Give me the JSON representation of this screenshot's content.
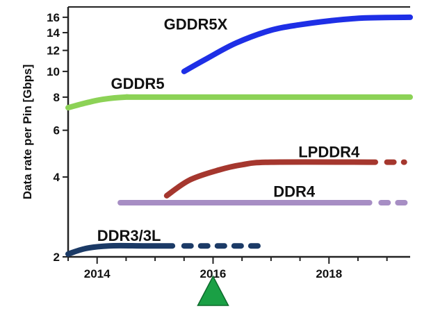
{
  "chart_data": {
    "type": "line",
    "title": "",
    "xlabel": "",
    "ylabel": "Data rate per Pin [Gbps]",
    "y_scale": "log",
    "xlim": [
      2013.5,
      2019.4
    ],
    "ylim": [
      2,
      17.5
    ],
    "x_ticks": [
      {
        "value": 2014,
        "label": "2014"
      },
      {
        "value": 2016,
        "label": "2016"
      },
      {
        "value": 2018,
        "label": "2018"
      }
    ],
    "y_ticks": [
      {
        "value": 2,
        "label": "2"
      },
      {
        "value": 4,
        "label": "4"
      },
      {
        "value": 6,
        "label": "6"
      },
      {
        "value": 8,
        "label": "8"
      },
      {
        "value": 10,
        "label": "10"
      },
      {
        "value": 12,
        "label": "12"
      },
      {
        "value": 14,
        "label": "14"
      },
      {
        "value": 16,
        "label": "16"
      }
    ],
    "grid": false,
    "series": [
      {
        "name": "GDDR5X",
        "color": "#1e2fe6",
        "solid": [
          [
            2015.5,
            10.0
          ],
          [
            2015.9,
            11.2
          ],
          [
            2016.4,
            12.8
          ],
          [
            2017.0,
            14.3
          ],
          [
            2017.5,
            15.0
          ],
          [
            2018.0,
            15.5
          ],
          [
            2018.6,
            15.9
          ],
          [
            2019.4,
            16.0
          ]
        ],
        "dashed": []
      },
      {
        "name": "GDDR5",
        "color": "#8cd256",
        "solid": [
          [
            2013.5,
            7.3
          ],
          [
            2013.8,
            7.6
          ],
          [
            2014.1,
            7.85
          ],
          [
            2014.5,
            8.0
          ],
          [
            2015.0,
            8.0
          ],
          [
            2019.4,
            8.0
          ]
        ],
        "dashed": []
      },
      {
        "name": "LPDDR4",
        "color": "#a5372e",
        "solid": [
          [
            2015.2,
            3.4
          ],
          [
            2015.6,
            3.9
          ],
          [
            2016.1,
            4.25
          ],
          [
            2016.5,
            4.45
          ],
          [
            2017.0,
            4.55
          ],
          [
            2018.8,
            4.55
          ]
        ],
        "dashed": [
          [
            2019.0,
            4.55
          ],
          [
            2019.3,
            4.55
          ]
        ]
      },
      {
        "name": "DDR4",
        "color": "#a78ec4",
        "solid": [
          [
            2014.4,
            3.2
          ],
          [
            2018.7,
            3.2
          ]
        ],
        "dashed": [
          [
            2018.9,
            3.2
          ],
          [
            2019.4,
            3.2
          ]
        ]
      },
      {
        "name": "DDR3/3L",
        "color": "#1b3a66",
        "solid": [
          [
            2013.5,
            2.05
          ],
          [
            2013.8,
            2.15
          ],
          [
            2014.2,
            2.2
          ],
          [
            2014.8,
            2.2
          ],
          [
            2015.3,
            2.2
          ]
        ],
        "dashed": [
          [
            2015.5,
            2.2
          ],
          [
            2016.8,
            2.2
          ]
        ]
      }
    ],
    "annotations": [
      {
        "type": "triangle-marker",
        "x": 2016.0,
        "color": "#1aa045"
      }
    ]
  }
}
